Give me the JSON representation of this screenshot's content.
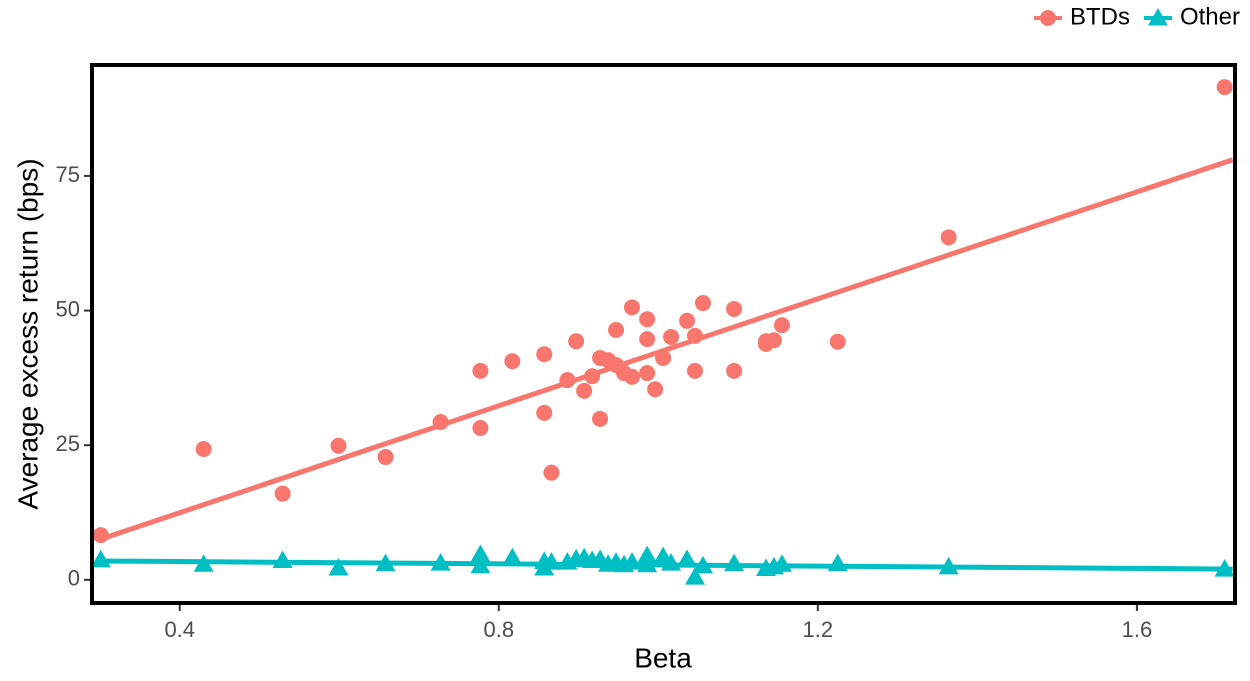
{
  "chart_data": {
    "type": "scatter",
    "x_label": "Beta",
    "y_label": "Average excess return (bps)",
    "xlim": [
      0.29,
      1.723
    ],
    "ylim": [
      -4.3,
      95.6
    ],
    "xticks": [
      0.4,
      0.8,
      1.2,
      1.6
    ],
    "yticks": [
      0,
      25,
      50,
      75
    ],
    "grid": false,
    "legend": "top-right",
    "series": [
      {
        "name": "BTDs",
        "color": "#F8766D",
        "marker": "circle",
        "x": [
          0.301,
          0.43,
          0.529,
          0.599,
          0.658,
          0.727,
          0.777,
          0.777,
          0.817,
          0.857,
          0.857,
          0.866,
          0.886,
          0.897,
          0.907,
          0.917,
          0.927,
          0.927,
          0.937,
          0.947,
          0.947,
          0.957,
          0.967,
          0.967,
          0.986,
          0.986,
          0.986,
          0.996,
          1.006,
          1.016,
          1.036,
          1.046,
          1.046,
          1.056,
          1.095,
          1.095,
          1.135,
          1.135,
          1.145,
          1.155,
          1.225,
          1.364,
          1.71
        ],
        "values": [
          8.3,
          24.3,
          16,
          24.9,
          22.8,
          29.3,
          38.8,
          28.2,
          40.6,
          41.9,
          31,
          19.9,
          37.1,
          44.3,
          35.1,
          37.8,
          41.2,
          29.9,
          40.8,
          46.4,
          39.9,
          38.4,
          50.6,
          37.7,
          48.4,
          44.7,
          38.4,
          35.4,
          41.2,
          45.1,
          48.1,
          45.3,
          38.8,
          51.4,
          50.3,
          38.8,
          43.8,
          44.3,
          44.5,
          47.3,
          44.2,
          63.6,
          91.5
        ],
        "fit_x": [
          0.3,
          1.72
        ],
        "fit_y": [
          7.5,
          78
        ]
      },
      {
        "name": "Other",
        "color": "#00BFC4",
        "marker": "triangle",
        "x": [
          0.301,
          0.43,
          0.529,
          0.599,
          0.658,
          0.727,
          0.777,
          0.777,
          0.817,
          0.857,
          0.857,
          0.866,
          0.886,
          0.897,
          0.907,
          0.917,
          0.927,
          0.937,
          0.947,
          0.957,
          0.967,
          0.986,
          0.986,
          1.006,
          1.016,
          1.036,
          1.046,
          1.056,
          1.095,
          1.135,
          1.145,
          1.155,
          1.225,
          1.364,
          1.71
        ],
        "values": [
          3.7,
          2.9,
          3.6,
          2.2,
          3.0,
          3.1,
          4.7,
          2.6,
          4.1,
          2.2,
          3.4,
          3.3,
          3.3,
          3.9,
          4.1,
          3.6,
          3.8,
          2.9,
          3.3,
          2.8,
          3.3,
          4.5,
          2.8,
          4.3,
          3.1,
          3.8,
          0.5,
          2.6,
          3.0,
          2.1,
          2.4,
          2.9,
          3.0,
          2.4,
          2.0
        ],
        "fit_x": [
          0.3,
          1.72
        ],
        "fit_y": [
          3.5,
          2
        ]
      }
    ]
  }
}
